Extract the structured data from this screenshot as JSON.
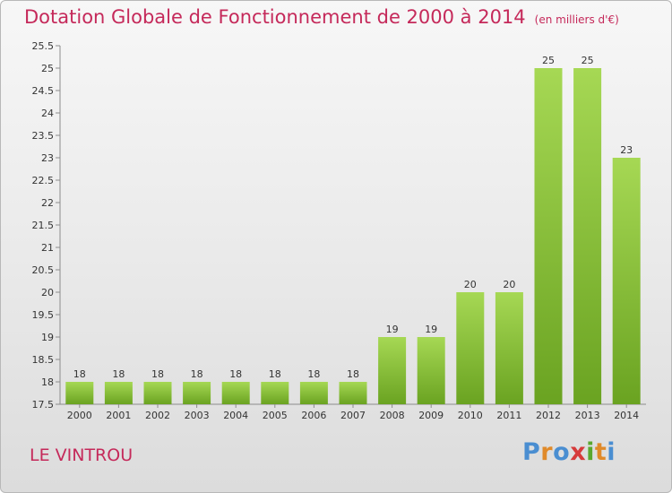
{
  "header": {
    "title": "Dotation Globale de Fonctionnement de 2000 à 2014",
    "unit": "(en milliers d'€)"
  },
  "footer": {
    "commune": "LE VINTROU",
    "logo": {
      "letters": [
        "P",
        "r",
        "o",
        "x",
        "i",
        "t",
        "i"
      ],
      "colors": [
        "#4a8ed1",
        "#e08a2a",
        "#4a8ed1",
        "#d63a3a",
        "#5aa82f",
        "#e08a2a",
        "#4a8ed1"
      ]
    }
  },
  "colors": {
    "bar_light": "#a6d854",
    "bar_dark": "#6aa321",
    "title": "#c5295a"
  },
  "chart_data": {
    "type": "bar",
    "title": "Dotation Globale de Fonctionnement de 2000 à 2014",
    "subtitle": "(en milliers d'€)",
    "categories": [
      "2000",
      "2001",
      "2002",
      "2003",
      "2004",
      "2005",
      "2006",
      "2007",
      "2008",
      "2009",
      "2010",
      "2011",
      "2012",
      "2013",
      "2014"
    ],
    "values": [
      18,
      18,
      18,
      18,
      18,
      18,
      18,
      18,
      19,
      19,
      20,
      20,
      25,
      25,
      23
    ],
    "ylim": [
      17.5,
      25.5
    ],
    "yticks": [
      "17.5",
      "18",
      "18.5",
      "19",
      "19.5",
      "20",
      "20.5",
      "21",
      "21.5",
      "22",
      "22.5",
      "23",
      "23.5",
      "24",
      "24.5",
      "25",
      "25.5"
    ],
    "grid": false,
    "legend": "none"
  }
}
